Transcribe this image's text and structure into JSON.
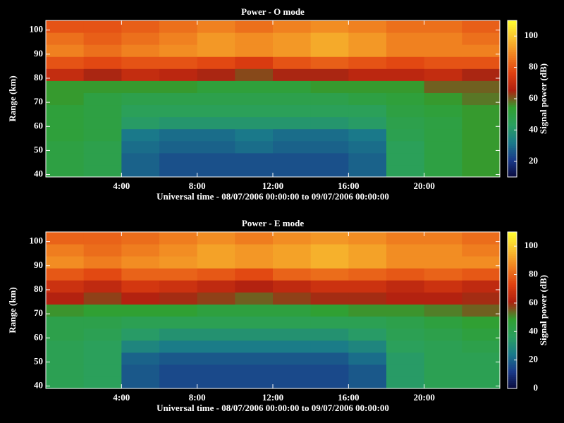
{
  "chart_data": [
    {
      "type": "heatmap",
      "title": "Power - O mode",
      "xlabel": "Universal time - 08/07/2006 00:00:00 to 09/07/2006 00:00:00",
      "ylabel": "Range (km)",
      "colorbar_label": "Signal power (dB)",
      "x": [
        0,
        2,
        4,
        6,
        8,
        10,
        12,
        14,
        16,
        18,
        20,
        22,
        24
      ],
      "y": [
        39,
        44,
        49,
        54,
        59,
        64,
        69,
        74,
        79,
        84,
        89,
        94,
        99,
        104
      ],
      "values": [
        [
          50,
          48,
          28,
          25,
          25,
          25,
          25,
          25,
          28,
          45,
          50,
          55
        ],
        [
          50,
          48,
          28,
          25,
          25,
          25,
          25,
          25,
          28,
          45,
          50,
          55
        ],
        [
          50,
          48,
          30,
          28,
          28,
          30,
          28,
          28,
          30,
          45,
          50,
          55
        ],
        [
          52,
          50,
          32,
          30,
          30,
          32,
          30,
          30,
          32,
          47,
          50,
          55
        ],
        [
          52,
          50,
          42,
          40,
          40,
          40,
          40,
          40,
          42,
          48,
          50,
          55
        ],
        [
          52,
          50,
          45,
          45,
          45,
          45,
          45,
          45,
          45,
          50,
          52,
          55
        ],
        [
          55,
          50,
          48,
          48,
          48,
          48,
          48,
          48,
          50,
          52,
          55,
          58
        ],
        [
          55,
          55,
          55,
          55,
          52,
          52,
          52,
          55,
          55,
          55,
          60,
          60
        ],
        [
          70,
          65,
          70,
          68,
          65,
          62,
          65,
          65,
          68,
          68,
          70,
          65
        ],
        [
          80,
          78,
          80,
          80,
          78,
          75,
          80,
          82,
          80,
          78,
          80,
          80
        ],
        [
          88,
          85,
          88,
          90,
          92,
          90,
          92,
          95,
          92,
          88,
          88,
          88
        ],
        [
          85,
          82,
          85,
          88,
          92,
          90,
          92,
          95,
          92,
          88,
          88,
          85
        ],
        [
          80,
          80,
          82,
          85,
          88,
          85,
          88,
          90,
          88,
          85,
          85,
          82
        ]
      ],
      "xlim": [
        0,
        24
      ],
      "xticks": [
        {
          "value": 4,
          "label": "4:00"
        },
        {
          "value": 8,
          "label": "8:00"
        },
        {
          "value": 12,
          "label": "12:00"
        },
        {
          "value": 16,
          "label": "16:00"
        },
        {
          "value": 20,
          "label": "20:00"
        }
      ],
      "ylim": [
        39,
        104
      ],
      "yticks": [
        40,
        50,
        60,
        70,
        80,
        90,
        100
      ],
      "clim": [
        10,
        110
      ],
      "cticks": [
        20,
        40,
        60,
        80,
        100
      ],
      "colormap": [
        "#0a0a3c",
        "#1a3a8a",
        "#1a7a8a",
        "#2aa060",
        "#30a030",
        "#b02010",
        "#e04010",
        "#f08020",
        "#f8c030",
        "#ffff30"
      ]
    },
    {
      "type": "heatmap",
      "title": "Power - E mode",
      "xlabel": "Universal time - 08/07/2006 00:00:00 to 09/07/2006 00:00:00",
      "ylabel": "Range (km)",
      "colorbar_label": "Signal power (dB)",
      "x": [
        0,
        2,
        4,
        6,
        8,
        10,
        12,
        14,
        16,
        18,
        20,
        22,
        24
      ],
      "y": [
        39,
        44,
        49,
        54,
        59,
        64,
        69,
        74,
        79,
        84,
        89,
        94,
        99,
        104
      ],
      "values": [
        [
          40,
          38,
          18,
          15,
          15,
          15,
          15,
          15,
          18,
          35,
          40,
          40
        ],
        [
          40,
          38,
          18,
          15,
          15,
          15,
          15,
          15,
          18,
          35,
          40,
          40
        ],
        [
          40,
          38,
          20,
          18,
          18,
          18,
          18,
          18,
          22,
          35,
          40,
          40
        ],
        [
          40,
          38,
          28,
          25,
          25,
          25,
          25,
          25,
          28,
          38,
          40,
          42
        ],
        [
          42,
          40,
          35,
          32,
          32,
          32,
          32,
          32,
          35,
          40,
          42,
          45
        ],
        [
          42,
          42,
          40,
          40,
          40,
          40,
          40,
          40,
          40,
          42,
          45,
          48
        ],
        [
          50,
          48,
          48,
          48,
          45,
          45,
          45,
          48,
          50,
          50,
          52,
          55
        ],
        [
          62,
          58,
          62,
          60,
          58,
          55,
          58,
          60,
          60,
          62,
          62,
          60
        ],
        [
          68,
          65,
          70,
          68,
          65,
          62,
          65,
          68,
          68,
          65,
          68,
          65
        ],
        [
          78,
          75,
          80,
          80,
          78,
          75,
          80,
          82,
          80,
          78,
          80,
          78
        ],
        [
          88,
          85,
          88,
          90,
          92,
          90,
          92,
          95,
          92,
          88,
          88,
          88
        ],
        [
          85,
          82,
          85,
          88,
          92,
          90,
          92,
          95,
          92,
          88,
          88,
          85
        ],
        [
          80,
          80,
          82,
          85,
          88,
          85,
          88,
          90,
          88,
          85,
          85,
          82
        ]
      ],
      "xlim": [
        0,
        24
      ],
      "xticks": [
        {
          "value": 4,
          "label": "4:00"
        },
        {
          "value": 8,
          "label": "8:00"
        },
        {
          "value": 12,
          "label": "12:00"
        },
        {
          "value": 16,
          "label": "16:00"
        },
        {
          "value": 20,
          "label": "20:00"
        }
      ],
      "ylim": [
        39,
        104
      ],
      "yticks": [
        40,
        50,
        60,
        70,
        80,
        90,
        100
      ],
      "clim": [
        0,
        110
      ],
      "cticks": [
        0,
        20,
        40,
        60,
        80,
        100
      ],
      "colormap": [
        "#0a0a3c",
        "#1a3a8a",
        "#1a7a8a",
        "#2aa060",
        "#30a030",
        "#b02010",
        "#e04010",
        "#f08020",
        "#f8c030",
        "#ffff30"
      ]
    }
  ]
}
